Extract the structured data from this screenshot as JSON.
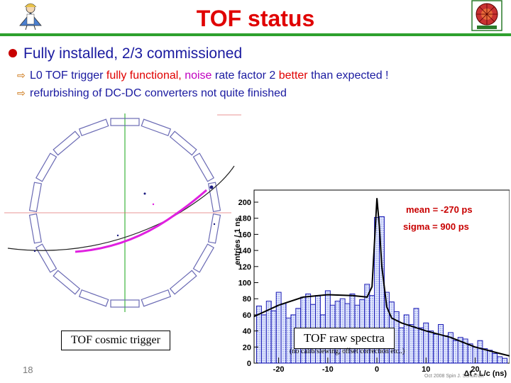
{
  "slide": {
    "title": "TOF status",
    "page_number": "18",
    "footer": "Oct 2008 Spin J. Schukraft"
  },
  "bullets": {
    "main": "Fully installed, 2/3 commissioned",
    "sub1": {
      "part1": "L0 TOF trigger",
      "part2": " fully functional, ",
      "part3": "noise",
      "part4": " rate factor 2 ",
      "part5": "better",
      "part6": " than expected !"
    },
    "sub2": "refurbishing of DC-DC converters not quite finished"
  },
  "cosmic_panel": {
    "caption": "TOF cosmic trigger"
  },
  "spectrum_panel": {
    "caption": "TOF raw spectra",
    "note": "(no calib/slewing, offset correction etc..)",
    "mean_label": "mean = -270 ps",
    "sigma_label": "sigma = 900 ps"
  },
  "chart_data": {
    "type": "bar",
    "ylabel": "entries / 1 ns",
    "xlabel": "Δt - L/c (ns)",
    "xlim": [
      -25,
      27
    ],
    "ylim": [
      0,
      215
    ],
    "xticks": [
      -20,
      -10,
      0,
      10,
      20
    ],
    "yticks": [
      0,
      20,
      40,
      60,
      80,
      100,
      120,
      140,
      160,
      180,
      200
    ],
    "grid": false,
    "series": [
      {
        "x": [
          -24,
          -23,
          -22,
          -21,
          -20,
          -19,
          -18,
          -17,
          -16,
          -15,
          -14,
          -13,
          -12,
          -11,
          -10,
          -9,
          -8,
          -7,
          -6,
          -5,
          -4,
          -3,
          -2,
          -1,
          0,
          1,
          2,
          3,
          4,
          5,
          6,
          7,
          8,
          9,
          10,
          11,
          12,
          13,
          14,
          15,
          16,
          17,
          18,
          19,
          20,
          21,
          22,
          23,
          24,
          25,
          26
        ],
        "values": [
          71,
          60,
          77,
          65,
          88,
          74,
          56,
          60,
          68,
          82,
          86,
          73,
          84,
          60,
          90,
          72,
          77,
          80,
          74,
          86,
          72,
          79,
          98,
          84,
          181,
          182,
          88,
          76,
          64,
          44,
          60,
          48,
          68,
          44,
          50,
          40,
          36,
          48,
          34,
          38,
          28,
          32,
          30,
          24,
          20,
          28,
          18,
          16,
          12,
          8,
          6
        ]
      }
    ],
    "fit_curve": {
      "x": [
        -25,
        -20,
        -15,
        -10,
        -5,
        -2,
        -1,
        0,
        0.5,
        1,
        2,
        3,
        5,
        10,
        15,
        20,
        25,
        27
      ],
      "y": [
        58,
        72,
        82,
        85,
        84,
        82,
        95,
        205,
        170,
        120,
        70,
        56,
        50,
        40,
        32,
        20,
        12,
        9
      ]
    }
  }
}
